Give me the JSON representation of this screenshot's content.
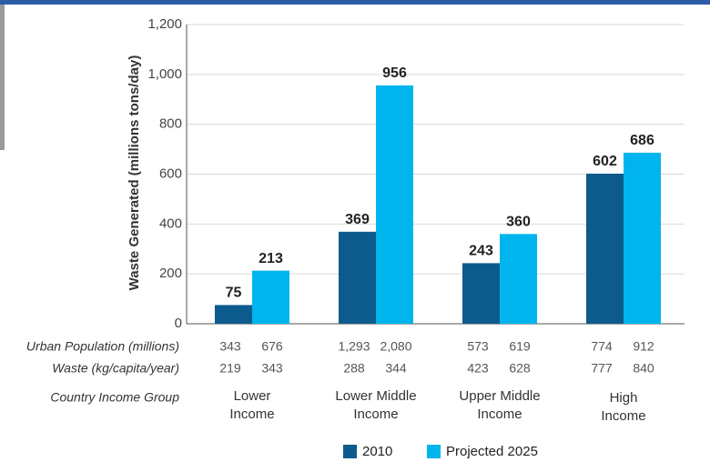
{
  "chart_data": {
    "type": "bar",
    "y_label": "Waste Generated (millions tons/day)",
    "categories": [
      "Lower Income",
      "Lower Middle Income",
      "Upper Middle Income",
      "High Income"
    ],
    "series": [
      {
        "name": "2010",
        "color": "#0d5b8c",
        "values": [
          75,
          369,
          243,
          602
        ]
      },
      {
        "name": "Projected 2025",
        "color": "#00b5ee",
        "values": [
          213,
          956,
          360,
          686
        ]
      }
    ],
    "ylim": [
      0,
      1200
    ],
    "yticks": [
      0,
      200,
      400,
      600,
      800,
      {
        "value": 1000,
        "label": "1,000"
      },
      {
        "value": 1200,
        "label": "1,200"
      }
    ],
    "grid": true,
    "table": {
      "rows": [
        {
          "label": "Urban Population (millions)",
          "values": [
            [
              343,
              676
            ],
            [
              1293,
              2080
            ],
            [
              573,
              619
            ],
            [
              774,
              912
            ]
          ],
          "value_labels": [
            [
              "343",
              "676"
            ],
            [
              "1,293",
              "2,080"
            ],
            [
              "573",
              "619"
            ],
            [
              "774",
              "912"
            ]
          ]
        },
        {
          "label": "Waste (kg/capita/year)",
          "values": [
            [
              219,
              343
            ],
            [
              288,
              344
            ],
            [
              423,
              628
            ],
            [
              777,
              840
            ]
          ]
        }
      ],
      "group_label": "Country Income Group"
    }
  }
}
